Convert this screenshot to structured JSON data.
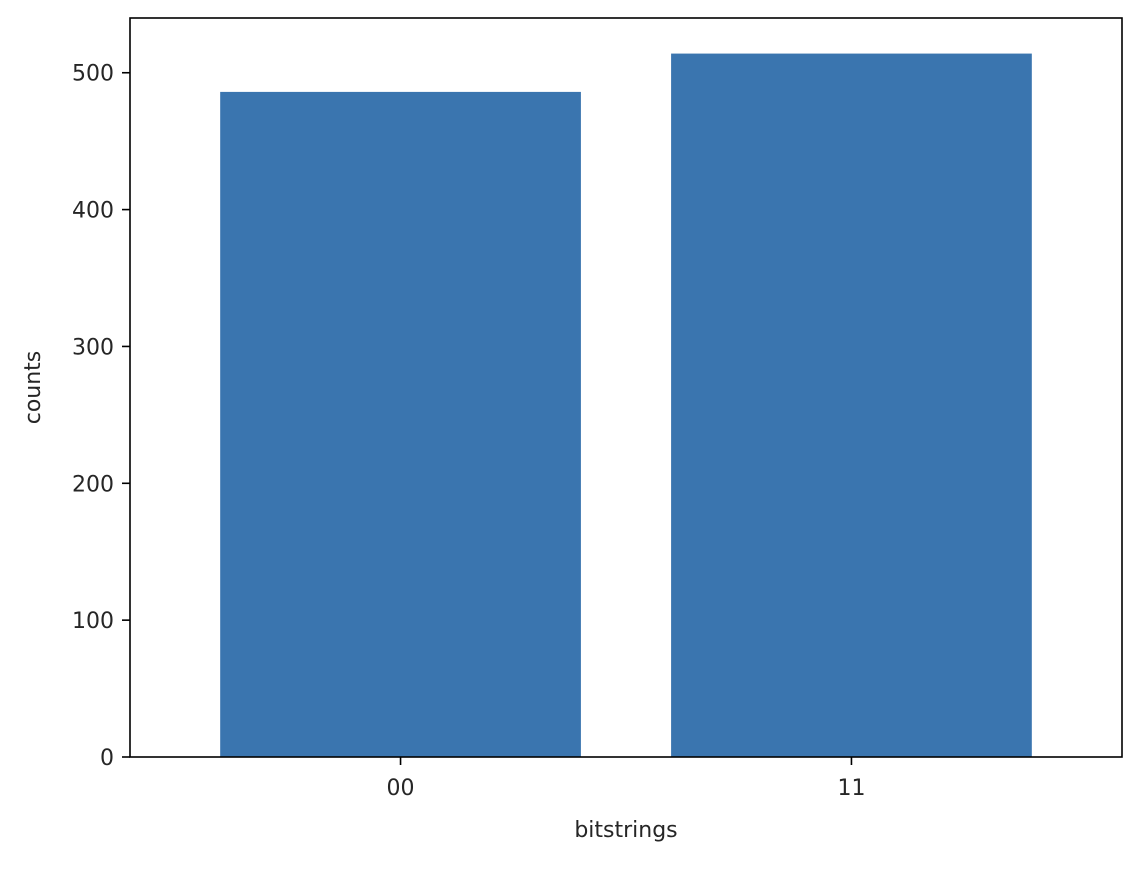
{
  "chart_data": {
    "type": "bar",
    "categories": [
      "00",
      "11"
    ],
    "values": [
      486,
      514
    ],
    "xlabel": "bitstrings",
    "ylabel": "counts",
    "ylim": [
      0,
      540
    ],
    "yticks": [
      0,
      100,
      200,
      300,
      400,
      500
    ],
    "bar_color": "#3a75af",
    "grid": false,
    "legend": "none"
  }
}
